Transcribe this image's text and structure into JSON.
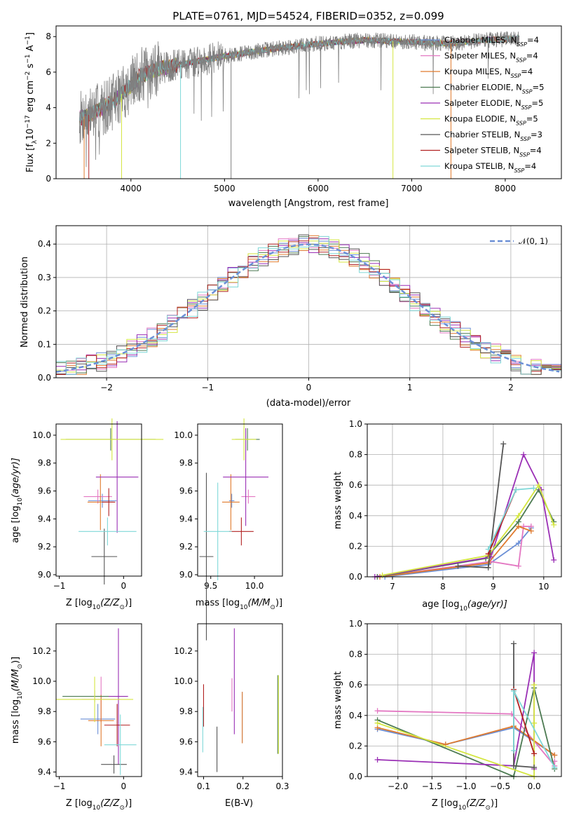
{
  "figure": {
    "title": "PLATE=0761, MJD=54524, FIBERID=0352, z=0.099"
  },
  "colors": {
    "Chabrier MILES": "#6b8fd6",
    "Salpeter MILES": "#e377c2",
    "Kroupa MILES": "#e07b2e",
    "Chabrier ELODIE": "#4c7a52",
    "Salpeter ELODIE": "#9a2fb5",
    "Kroupa ELODIE": "#d4e640",
    "Chabrier STELIB": "#555555",
    "Salpeter STELIB": "#b22222",
    "Kroupa STELIB": "#7fd8d8",
    "gauss": "#6b8fd6"
  },
  "legend_spectrum": [
    {
      "key": "Chabrier MILES",
      "label": "Chabrier MILES, N",
      "sub": "SSP",
      "tail": "=4"
    },
    {
      "key": "Salpeter MILES",
      "label": "Salpeter MILES, N",
      "sub": "SSP",
      "tail": "=4"
    },
    {
      "key": "Kroupa MILES",
      "label": "Kroupa MILES, N",
      "sub": "SSP",
      "tail": "=4"
    },
    {
      "key": "Chabrier ELODIE",
      "label": "Chabrier ELODIE, N",
      "sub": "SSP",
      "tail": "=5"
    },
    {
      "key": "Salpeter ELODIE",
      "label": "Salpeter ELODIE, N",
      "sub": "SSP",
      "tail": "=5"
    },
    {
      "key": "Kroupa ELODIE",
      "label": "Kroupa ELODIE, N",
      "sub": "SSP",
      "tail": "=5"
    },
    {
      "key": "Chabrier STELIB",
      "label": "Chabrier STELIB, N",
      "sub": "SSP",
      "tail": "=3"
    },
    {
      "key": "Salpeter STELIB",
      "label": "Salpeter STELIB, N",
      "sub": "SSP",
      "tail": "=4"
    },
    {
      "key": "Kroupa STELIB",
      "label": "Kroupa STELIB, N",
      "sub": "SSP",
      "tail": "=4"
    }
  ],
  "legend_hist": {
    "label": "𝒩(0, 1)"
  },
  "chart_data": [
    {
      "id": "spectrum",
      "type": "line",
      "xlabel": "wavelength [Angstrom, rest frame]",
      "ylabel_main": "Flux [f",
      "ylabel_sub": "λ",
      "ylabel_rest": "10",
      "ylabel_sup": "−17",
      "ylabel_tail": " erg cm",
      "ylabel_sup2": "−2",
      "ylabel_tail2": " s",
      "ylabel_sup3": "−1",
      "ylabel_tail3": " A",
      "ylabel_sup4": "−1",
      "ylabel_end": "]",
      "xlim": [
        3200,
        8600
      ],
      "ylim": [
        0,
        8.6
      ],
      "xticks": [
        4000,
        5000,
        6000,
        7000,
        8000
      ],
      "yticks": [
        0,
        2,
        4,
        6,
        8
      ],
      "continuum": [
        [
          3450,
          3.4
        ],
        [
          3600,
          3.7
        ],
        [
          3800,
          4.3
        ],
        [
          3950,
          5.0
        ],
        [
          4100,
          5.8
        ],
        [
          4300,
          6.2
        ],
        [
          4600,
          6.5
        ],
        [
          5000,
          6.9
        ],
        [
          5500,
          7.3
        ],
        [
          6000,
          7.6
        ],
        [
          6500,
          7.8
        ],
        [
          7000,
          7.7
        ],
        [
          7400,
          7.6
        ],
        [
          7800,
          7.8
        ],
        [
          8150,
          7.9
        ]
      ]
    },
    {
      "id": "residuals",
      "type": "line",
      "xlabel": "(data-model)/error",
      "ylabel": "Normed distribution",
      "xlim": [
        -2.5,
        2.5
      ],
      "ylim": [
        0,
        0.455
      ],
      "xticks": [
        -2,
        -1,
        0,
        1,
        2
      ],
      "yticks": [
        0.0,
        0.1,
        0.2,
        0.3,
        0.4
      ],
      "grid": true
    },
    {
      "id": "age_vs_Z",
      "type": "scatter",
      "xlabel_main": "Z [log",
      "xlabel_sub": "10",
      "xlabel_rest": "(Z/Z",
      "xlabel_sub2": "⊙",
      "xlabel_end": ")]",
      "ylabel_main": "age  [log",
      "ylabel_sub": "10",
      "ylabel_end": "(age/yr)]",
      "xlim": [
        -1.05,
        0.28
      ],
      "ylim": [
        8.99,
        10.08
      ],
      "xticks": [
        -1,
        0
      ],
      "yticks": [
        9.0,
        9.2,
        9.4,
        9.6,
        9.8,
        10.0
      ],
      "points": [
        {
          "key": "Chabrier MILES",
          "x": -0.33,
          "xerr": 0.22,
          "y": 9.53,
          "yerr": 0.05
        },
        {
          "key": "Salpeter MILES",
          "x": -0.4,
          "xerr": 0.22,
          "y": 9.56,
          "yerr": 0.05
        },
        {
          "key": "Kroupa MILES",
          "x": -0.36,
          "xerr": 0.2,
          "y": 9.52,
          "yerr": 0.2
        },
        {
          "key": "Chabrier ELODIE",
          "x": -0.2,
          "xerr": 0.7,
          "y": 9.97,
          "yerr": 0.08
        },
        {
          "key": "Salpeter ELODIE",
          "x": -0.1,
          "xerr": 0.33,
          "y": 9.7,
          "yerr": 0.4
        },
        {
          "key": "Kroupa ELODIE",
          "x": -0.18,
          "xerr": 0.8,
          "y": 9.97,
          "yerr": 0.15
        },
        {
          "key": "Chabrier STELIB",
          "x": -0.3,
          "xerr": 0.2,
          "y": 9.13,
          "yerr": 0.2
        },
        {
          "key": "Salpeter STELIB",
          "x": -0.23,
          "xerr": 0.1,
          "y": 9.52,
          "yerr": 0.1
        },
        {
          "key": "Kroupa STELIB",
          "x": -0.25,
          "xerr": 0.45,
          "y": 9.31,
          "yerr": 0.1
        }
      ]
    },
    {
      "id": "age_vs_mass",
      "type": "scatter",
      "xlabel_main": "mass [log",
      "xlabel_sub": "10",
      "xlabel_rest": "(M/M",
      "xlabel_sub2": "⊙",
      "xlabel_end": ")]",
      "xlim": [
        9.35,
        10.32
      ],
      "ylim": [
        8.99,
        10.08
      ],
      "xticks": [
        9.5,
        10.0
      ],
      "yticks": [
        9.0,
        9.2,
        9.4,
        9.6,
        9.8,
        10.0
      ],
      "points": [
        {
          "key": "Chabrier MILES",
          "x": 9.74,
          "xerr": 0.03,
          "y": 9.53,
          "yerr": 0.05
        },
        {
          "key": "Salpeter MILES",
          "x": 9.93,
          "xerr": 0.08,
          "y": 9.56,
          "yerr": 0.05
        },
        {
          "key": "Kroupa MILES",
          "x": 9.73,
          "xerr": 0.1,
          "y": 9.52,
          "yerr": 0.2
        },
        {
          "key": "Chabrier ELODIE",
          "x": 9.92,
          "xerr": 0.14,
          "y": 9.97,
          "yerr": 0.08
        },
        {
          "key": "Salpeter ELODIE",
          "x": 9.9,
          "xerr": 0.26,
          "y": 9.7,
          "yerr": 0.35
        },
        {
          "key": "Kroupa ELODIE",
          "x": 9.88,
          "xerr": 0.14,
          "y": 9.97,
          "yerr": 0.15
        },
        {
          "key": "Chabrier STELIB",
          "x": 9.45,
          "xerr": 0.08,
          "y": 9.13,
          "yerr": 0.6
        },
        {
          "key": "Salpeter STELIB",
          "x": 9.85,
          "xerr": 0.14,
          "y": 9.31,
          "yerr": 0.1
        },
        {
          "key": "Kroupa STELIB",
          "x": 9.58,
          "xerr": 0.16,
          "y": 9.31,
          "yerr": 0.35
        }
      ]
    },
    {
      "id": "weight_vs_age",
      "type": "line",
      "xlabel_main": "age  [log",
      "xlabel_sub": "10",
      "xlabel_end": "(age/yr)]",
      "ylabel": "mass weight",
      "xlim": [
        6.5,
        10.35
      ],
      "ylim": [
        0.0,
        1.0
      ],
      "xticks": [
        7,
        8,
        9,
        10
      ],
      "yticks": [
        0.0,
        0.2,
        0.4,
        0.6,
        0.8,
        1.0
      ],
      "grid": true,
      "series": [
        {
          "key": "Chabrier MILES",
          "points": [
            [
              6.85,
              0.0
            ],
            [
              8.9,
              0.08
            ],
            [
              9.5,
              0.22
            ],
            [
              9.75,
              0.32
            ]
          ]
        },
        {
          "key": "Salpeter MILES",
          "points": [
            [
              6.7,
              0.0
            ],
            [
              8.95,
              0.1
            ],
            [
              9.5,
              0.07
            ],
            [
              9.6,
              0.33
            ],
            [
              9.75,
              0.33
            ]
          ]
        },
        {
          "key": "Kroupa MILES",
          "points": [
            [
              6.75,
              0.0
            ],
            [
              8.9,
              0.09
            ],
            [
              9.5,
              0.33
            ],
            [
              9.75,
              0.3
            ]
          ]
        },
        {
          "key": "Chabrier ELODIE",
          "points": [
            [
              6.7,
              0.0
            ],
            [
              8.85,
              0.12
            ],
            [
              9.5,
              0.36
            ],
            [
              9.9,
              0.57
            ],
            [
              10.2,
              0.36
            ]
          ]
        },
        {
          "key": "Salpeter ELODIE",
          "points": [
            [
              6.65,
              0.0
            ],
            [
              8.95,
              0.13
            ],
            [
              9.6,
              0.8
            ],
            [
              9.95,
              0.57
            ],
            [
              10.2,
              0.11
            ]
          ]
        },
        {
          "key": "Kroupa ELODIE",
          "points": [
            [
              6.8,
              0.01
            ],
            [
              8.9,
              0.14
            ],
            [
              9.5,
              0.4
            ],
            [
              9.9,
              0.6
            ],
            [
              10.2,
              0.34
            ]
          ]
        },
        {
          "key": "Chabrier STELIB",
          "points": [
            [
              8.3,
              0.07
            ],
            [
              8.9,
              0.06
            ],
            [
              9.2,
              0.87
            ]
          ]
        },
        {
          "key": "Salpeter STELIB",
          "points": [
            [
              8.9,
              0.15
            ],
            [
              9.45,
              0.57
            ]
          ]
        },
        {
          "key": "Kroupa STELIB",
          "points": [
            [
              8.9,
              0.18
            ],
            [
              9.45,
              0.57
            ],
            [
              9.8,
              0.58
            ]
          ]
        }
      ]
    },
    {
      "id": "mass_vs_Z",
      "type": "scatter",
      "xlabel_main": "Z [log",
      "xlabel_sub": "10",
      "xlabel_rest": "(Z/Z",
      "xlabel_sub2": "⊙",
      "xlabel_end": ")]",
      "ylabel_main": "mass [log",
      "ylabel_sub": "10",
      "ylabel_rest": "(M/M",
      "ylabel_sub2": "⊙",
      "ylabel_end": ")]",
      "xlim": [
        -1.05,
        0.28
      ],
      "ylim": [
        9.37,
        10.38
      ],
      "xticks": [
        -1,
        0
      ],
      "yticks": [
        9.4,
        9.6,
        9.8,
        10.0,
        10.2
      ],
      "points": [
        {
          "key": "Chabrier MILES",
          "x": -0.4,
          "xerr": 0.27,
          "y": 9.75,
          "yerr": 0.1
        },
        {
          "key": "Salpeter MILES",
          "x": -0.35,
          "xerr": 0.3,
          "y": 9.88,
          "yerr": 0.15
        },
        {
          "key": "Kroupa MILES",
          "x": -0.35,
          "xerr": 0.2,
          "y": 9.74,
          "yerr": 0.17
        },
        {
          "key": "Chabrier ELODIE",
          "x": -0.45,
          "xerr": 0.5,
          "y": 9.9,
          "yerr": 0.04
        },
        {
          "key": "Salpeter ELODIE",
          "x": -0.08,
          "xerr": 0.15,
          "y": 9.9,
          "yerr": 0.45
        },
        {
          "key": "Kroupa ELODIE",
          "x": -0.45,
          "xerr": 0.6,
          "y": 9.88,
          "yerr": 0.15
        },
        {
          "key": "Chabrier STELIB",
          "x": -0.15,
          "xerr": 0.2,
          "y": 9.45,
          "yerr": 0.06
        },
        {
          "key": "Salpeter STELIB",
          "x": -0.1,
          "xerr": 0.2,
          "y": 9.71,
          "yerr": 0.14
        },
        {
          "key": "Kroupa STELIB",
          "x": -0.05,
          "xerr": 0.25,
          "y": 9.58,
          "yerr": 0.2
        }
      ]
    },
    {
      "id": "mass_vs_ebv",
      "type": "scatter",
      "xlabel": "E(B-V)",
      "xlim": [
        0.085,
        0.3
      ],
      "ylim": [
        9.37,
        10.38
      ],
      "xticks": [
        0.1,
        0.2,
        0.3
      ],
      "yticks": [
        9.4,
        9.6,
        9.8,
        10.0,
        10.2
      ],
      "points": [
        {
          "key": "Chabrier MILES",
          "x": 0.198,
          "y": 9.76,
          "yerr": 0.17
        },
        {
          "key": "Salpeter MILES",
          "x": 0.172,
          "y": 9.91,
          "yerr": 0.11
        },
        {
          "key": "Kroupa MILES",
          "x": 0.198,
          "y": 9.76,
          "yerr": 0.17
        },
        {
          "key": "Chabrier ELODIE",
          "x": 0.288,
          "y": 9.78,
          "yerr": 0.26
        },
        {
          "key": "Salpeter ELODIE",
          "x": 0.178,
          "y": 10.0,
          "yerr": 0.35
        },
        {
          "key": "Kroupa ELODIE",
          "x": 0.29,
          "y": 9.78,
          "yerr": 0.26
        },
        {
          "key": "Chabrier STELIB",
          "x": 0.134,
          "y": 9.55,
          "yerr": 0.15
        },
        {
          "key": "Salpeter STELIB",
          "x": 0.1,
          "y": 9.84,
          "yerr": 0.14
        },
        {
          "key": "Kroupa STELIB",
          "x": 0.098,
          "y": 9.68,
          "yerr": 0.15
        }
      ]
    },
    {
      "id": "weight_vs_Z",
      "type": "line",
      "xlabel_main": "Z [log",
      "xlabel_sub": "10",
      "xlabel_rest": "(Z/Z",
      "xlabel_sub2": "⊙",
      "xlabel_end": ")]",
      "ylabel": "mass weight",
      "xlim": [
        -2.45,
        0.4
      ],
      "ylim": [
        0.0,
        1.0
      ],
      "xticks": [
        -2.0,
        -1.5,
        -1.0,
        -0.5,
        0.0
      ],
      "yticks": [
        0.0,
        0.2,
        0.4,
        0.6,
        0.8,
        1.0
      ],
      "grid": true,
      "series": [
        {
          "key": "Chabrier MILES",
          "points": [
            [
              -2.3,
              0.31
            ],
            [
              -1.3,
              0.21
            ],
            [
              -0.3,
              0.32
            ],
            [
              0.3,
              0.14
            ]
          ]
        },
        {
          "key": "Salpeter MILES",
          "points": [
            [
              -2.3,
              0.43
            ],
            [
              -0.33,
              0.41
            ],
            [
              0.3,
              0.07
            ],
            [
              0.3,
              0.1
            ]
          ]
        },
        {
          "key": "Kroupa MILES",
          "points": [
            [
              -2.3,
              0.32
            ],
            [
              -1.3,
              0.21
            ],
            [
              -0.3,
              0.33
            ],
            [
              0.3,
              0.14
            ]
          ]
        },
        {
          "key": "Chabrier ELODIE",
          "points": [
            [
              -2.3,
              0.37
            ],
            [
              -0.3,
              0.0
            ],
            [
              0.0,
              0.58
            ],
            [
              0.3,
              0.05
            ]
          ]
        },
        {
          "key": "Salpeter ELODIE",
          "points": [
            [
              -2.3,
              0.11
            ],
            [
              -0.3,
              0.07
            ],
            [
              0.0,
              0.81
            ],
            [
              0.0,
              0.05
            ]
          ]
        },
        {
          "key": "Kroupa ELODIE",
          "points": [
            [
              -2.3,
              0.35
            ],
            [
              0.0,
              0.0
            ],
            [
              0.0,
              0.6
            ],
            [
              0.0,
              0.35
            ]
          ]
        },
        {
          "key": "Chabrier STELIB",
          "points": [
            [
              -0.3,
              0.87
            ],
            [
              -0.3,
              0.07
            ],
            [
              0.0,
              0.06
            ]
          ]
        },
        {
          "key": "Salpeter STELIB",
          "points": [
            [
              -0.3,
              0.57
            ],
            [
              0.0,
              0.15
            ]
          ]
        },
        {
          "key": "Kroupa STELIB",
          "points": [
            [
              -0.3,
              0.17
            ],
            [
              -0.3,
              0.56
            ],
            [
              0.3,
              0.06
            ]
          ]
        }
      ]
    }
  ]
}
